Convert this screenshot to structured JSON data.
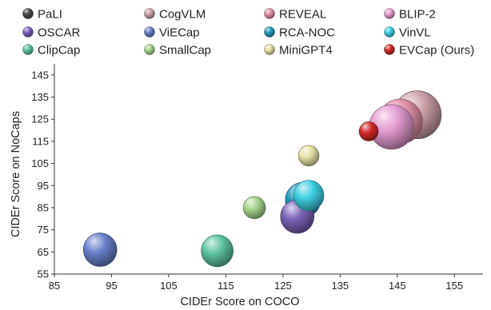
{
  "chart_data": {
    "type": "scatter",
    "variant": "bubble",
    "xlabel": "CIDEr Score on COCO",
    "ylabel": "CIDEr Score on NoCaps",
    "xlim": [
      85,
      160
    ],
    "ylim": [
      55,
      150
    ],
    "xticks": [
      85,
      95,
      105,
      115,
      125,
      135,
      145,
      155
    ],
    "yticks": [
      55,
      65,
      75,
      85,
      95,
      105,
      115,
      125,
      135,
      145
    ],
    "grid": false,
    "legend": "top",
    "series": [
      {
        "name": "PaLI",
        "x": 148.5,
        "y": 127.0,
        "color": "#4a4a4a"
      },
      {
        "name": "CogVLM",
        "x": 148.5,
        "y": 127.0,
        "color": "#c9a0a6"
      },
      {
        "name": "REVEAL",
        "x": 145.5,
        "y": 124.0,
        "color": "#e28fa6"
      },
      {
        "name": "BLIP-2",
        "x": 144.0,
        "y": 121.5,
        "color": "#e49ccf"
      },
      {
        "name": "OSCAR",
        "x": 127.5,
        "y": 81.0,
        "color": "#7a62b8"
      },
      {
        "name": "ViECap",
        "x": 93.0,
        "y": 66.0,
        "color": "#6a7fcc"
      },
      {
        "name": "RCA-NOC",
        "x": 128.5,
        "y": 88.5,
        "color": "#2597b9"
      },
      {
        "name": "VinVL",
        "x": 129.5,
        "y": 90.5,
        "color": "#3fd0e4"
      },
      {
        "name": "ClipCap",
        "x": 113.5,
        "y": 65.5,
        "color": "#5ec4a0"
      },
      {
        "name": "SmallCap",
        "x": 120.0,
        "y": 85.0,
        "color": "#a8d38f"
      },
      {
        "name": "MiniGPT4",
        "x": 129.5,
        "y": 108.5,
        "color": "#e5e1a6"
      },
      {
        "name": "EVCap (Ours)",
        "x": 140.0,
        "y": 119.5,
        "color": "#d02a2a"
      }
    ]
  }
}
